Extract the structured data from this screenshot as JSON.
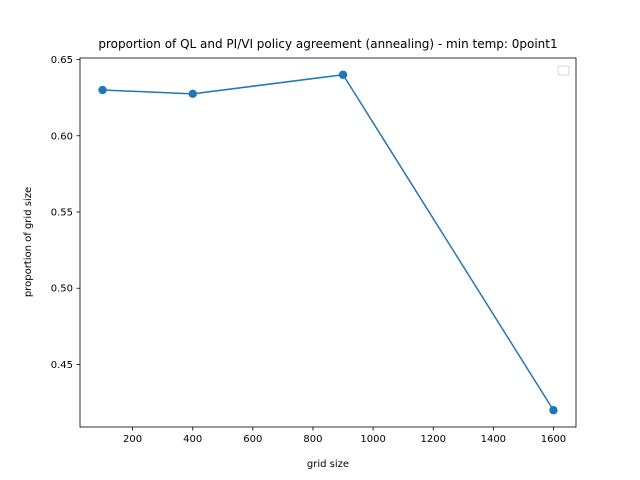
{
  "chart_data": {
    "type": "line",
    "title": "proportion of QL and PI/VI policy agreement (annealing) - min temp: 0point1",
    "xlabel": "grid size",
    "ylabel": "proportion of grid size",
    "x": [
      100,
      400,
      900,
      1600
    ],
    "series": [
      {
        "values": [
          0.63,
          0.6275,
          0.64,
          0.42
        ],
        "color": "#1f77b4"
      }
    ],
    "xlim": [
      25,
      1675
    ],
    "ylim": [
      0.409,
      0.651
    ],
    "xticks": [
      200,
      400,
      600,
      800,
      1000,
      1200,
      1400,
      1600
    ],
    "xtick_labels": [
      "200",
      "400",
      "600",
      "800",
      "1000",
      "1200",
      "1400",
      "1600"
    ],
    "yticks": [
      0.45,
      0.5,
      0.55,
      0.6,
      0.65
    ],
    "ytick_labels": [
      "0.45",
      "0.50",
      "0.55",
      "0.60",
      "0.65"
    ],
    "grid": false,
    "legend": {
      "placement": "top-right",
      "entries": []
    },
    "marker": "circle"
  }
}
